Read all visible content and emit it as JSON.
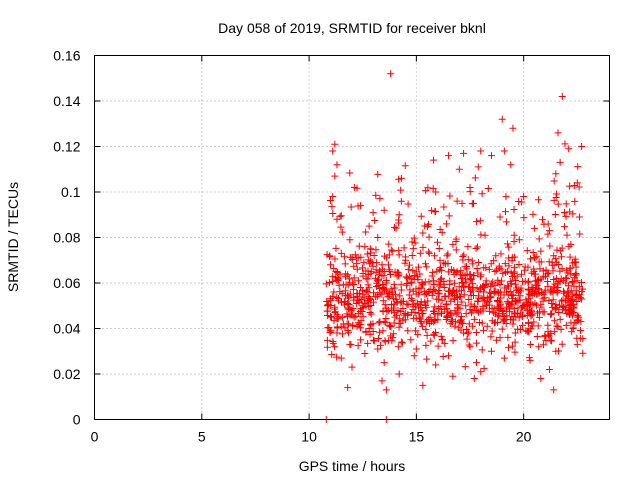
{
  "chart_data": {
    "type": "scatter",
    "title": "Day 058 of 2019, SRMTID for receiver bknl",
    "xlabel": "GPS time / hours",
    "ylabel": "SRMTID / TECUs",
    "xlim": [
      0,
      24
    ],
    "ylim": [
      0,
      0.16
    ],
    "xticks": [
      0,
      5,
      10,
      15,
      20
    ],
    "yticks": [
      0,
      0.02,
      0.04,
      0.06,
      0.08,
      0.1,
      0.12,
      0.14,
      0.16
    ],
    "xtick_labels": [
      "0",
      "5",
      "10",
      "15",
      "20"
    ],
    "ytick_labels": [
      "0",
      "0.02",
      "0.04",
      "0.06",
      "0.08",
      "0.1",
      "0.12",
      "0.14",
      "0.16"
    ],
    "grid": true,
    "marker": "+",
    "series_color": "#ff0000",
    "data_extent_hours": [
      10.8,
      22.8
    ],
    "note": "Dense cloud of ~1500 SRMTID samples between 10.8 h and 22.8 h, mostly 0.02-0.09 TECU; representative points listed below.",
    "points": [
      [
        13.8,
        0.152
      ],
      [
        21.8,
        0.142
      ],
      [
        19.0,
        0.132
      ],
      [
        19.5,
        0.128
      ],
      [
        21.6,
        0.126
      ],
      [
        11.2,
        0.121
      ],
      [
        11.1,
        0.118
      ],
      [
        22.7,
        0.12
      ],
      [
        22.1,
        0.119
      ],
      [
        21.7,
        0.113
      ],
      [
        11.3,
        0.112
      ],
      [
        19.1,
        0.118
      ],
      [
        18.5,
        0.116
      ],
      [
        18.0,
        0.118
      ],
      [
        17.2,
        0.117
      ],
      [
        16.5,
        0.116
      ],
      [
        15.8,
        0.114
      ],
      [
        14.3,
        0.106
      ],
      [
        17.0,
        0.11
      ],
      [
        19.4,
        0.112
      ],
      [
        11.2,
        0.107
      ],
      [
        21.5,
        0.108
      ],
      [
        22.5,
        0.104
      ],
      [
        17.5,
        0.102
      ],
      [
        15.9,
        0.1
      ],
      [
        11.1,
        0.098
      ],
      [
        20.0,
        0.098
      ],
      [
        16.9,
        0.096
      ],
      [
        12.4,
        0.094
      ],
      [
        13.5,
        0.092
      ],
      [
        14.2,
        0.09
      ],
      [
        21.9,
        0.091
      ],
      [
        22.6,
        0.089
      ],
      [
        18.9,
        0.089
      ],
      [
        17.8,
        0.087
      ],
      [
        16.4,
        0.086
      ],
      [
        11.3,
        0.088
      ],
      [
        12.8,
        0.085
      ],
      [
        20.5,
        0.084
      ],
      [
        21.2,
        0.083
      ],
      [
        15.3,
        0.082
      ],
      [
        18.2,
        0.081
      ],
      [
        13.2,
        0.08
      ],
      [
        19.8,
        0.079
      ],
      [
        11.9,
        0.079
      ],
      [
        14.8,
        0.078
      ],
      [
        16.7,
        0.077
      ],
      [
        22.2,
        0.077
      ],
      [
        12.6,
        0.076
      ],
      [
        17.4,
        0.076
      ],
      [
        13.9,
        0.074
      ],
      [
        20.8,
        0.074
      ],
      [
        11.5,
        0.073
      ],
      [
        15.6,
        0.073
      ],
      [
        18.7,
        0.072
      ],
      [
        21.4,
        0.072
      ],
      [
        12.2,
        0.071
      ],
      [
        19.3,
        0.071
      ],
      [
        14.5,
        0.07
      ],
      [
        16.1,
        0.07
      ],
      [
        17.9,
        0.069
      ],
      [
        22.4,
        0.069
      ],
      [
        11.0,
        0.068
      ],
      [
        13.4,
        0.068
      ],
      [
        20.2,
        0.067
      ],
      [
        15.1,
        0.067
      ],
      [
        18.4,
        0.066
      ],
      [
        12.9,
        0.065
      ],
      [
        16.9,
        0.065
      ],
      [
        21.1,
        0.064
      ],
      [
        11.7,
        0.064
      ],
      [
        14.1,
        0.063
      ],
      [
        19.7,
        0.063
      ],
      [
        17.1,
        0.062
      ],
      [
        22.0,
        0.062
      ],
      [
        12.3,
        0.061
      ],
      [
        15.8,
        0.061
      ],
      [
        18.8,
        0.06
      ],
      [
        13.6,
        0.06
      ],
      [
        20.6,
        0.059
      ],
      [
        11.4,
        0.059
      ],
      [
        16.3,
        0.058
      ],
      [
        21.6,
        0.058
      ],
      [
        14.7,
        0.057
      ],
      [
        17.6,
        0.057
      ],
      [
        12.7,
        0.056
      ],
      [
        19.2,
        0.056
      ],
      [
        15.4,
        0.055
      ],
      [
        22.6,
        0.055
      ],
      [
        11.1,
        0.054
      ],
      [
        13.1,
        0.054
      ],
      [
        18.1,
        0.053
      ],
      [
        20.9,
        0.053
      ],
      [
        16.6,
        0.052
      ],
      [
        14.4,
        0.052
      ],
      [
        11.8,
        0.051
      ],
      [
        21.3,
        0.051
      ],
      [
        17.3,
        0.05
      ],
      [
        12.5,
        0.05
      ],
      [
        19.9,
        0.049
      ],
      [
        15.2,
        0.049
      ],
      [
        13.7,
        0.048
      ],
      [
        22.1,
        0.048
      ],
      [
        18.6,
        0.047
      ],
      [
        11.2,
        0.047
      ],
      [
        16.0,
        0.046
      ],
      [
        20.4,
        0.046
      ],
      [
        14.0,
        0.045
      ],
      [
        12.1,
        0.045
      ],
      [
        17.7,
        0.044
      ],
      [
        21.7,
        0.044
      ],
      [
        15.7,
        0.043
      ],
      [
        13.3,
        0.043
      ],
      [
        19.5,
        0.042
      ],
      [
        11.6,
        0.042
      ],
      [
        18.3,
        0.041
      ],
      [
        16.8,
        0.041
      ],
      [
        22.3,
        0.04
      ],
      [
        12.8,
        0.04
      ],
      [
        14.6,
        0.039
      ],
      [
        20.1,
        0.039
      ],
      [
        17.2,
        0.038
      ],
      [
        11.3,
        0.038
      ],
      [
        15.5,
        0.037
      ],
      [
        21.0,
        0.037
      ],
      [
        13.9,
        0.036
      ],
      [
        18.9,
        0.036
      ],
      [
        12.4,
        0.035
      ],
      [
        16.2,
        0.035
      ],
      [
        19.6,
        0.034
      ],
      [
        14.3,
        0.034
      ],
      [
        22.5,
        0.033
      ],
      [
        11.9,
        0.033
      ],
      [
        17.5,
        0.032
      ],
      [
        20.7,
        0.032
      ],
      [
        15.0,
        0.031
      ],
      [
        13.2,
        0.031
      ],
      [
        18.5,
        0.03
      ],
      [
        21.5,
        0.03
      ],
      [
        12.6,
        0.029
      ],
      [
        16.5,
        0.028
      ],
      [
        14.9,
        0.028
      ],
      [
        19.1,
        0.027
      ],
      [
        11.5,
        0.027
      ],
      [
        20.3,
        0.026
      ],
      [
        13.5,
        0.025
      ],
      [
        17.8,
        0.025
      ],
      [
        15.9,
        0.024
      ],
      [
        12.0,
        0.023
      ],
      [
        21.2,
        0.022
      ],
      [
        18.0,
        0.021
      ],
      [
        14.2,
        0.02
      ],
      [
        16.7,
        0.019
      ],
      [
        20.8,
        0.018
      ],
      [
        13.4,
        0.017
      ],
      [
        15.3,
        0.015
      ],
      [
        11.8,
        0.014
      ],
      [
        21.4,
        0.013
      ],
      [
        13.6,
        0.013
      ],
      [
        17.7,
        0.018
      ],
      [
        10.8,
        0.0
      ],
      [
        13.6,
        0.0
      ]
    ]
  }
}
